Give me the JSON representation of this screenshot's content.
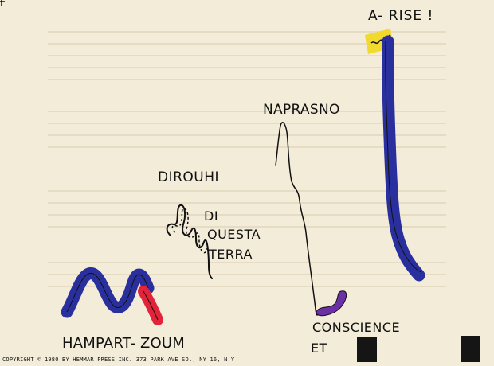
{
  "labels": {
    "hampart_zoum": "HAMPART- ZOUM",
    "dirouhi": "DIROUHI",
    "di_questa_line1": "DI",
    "di_questa_line2": "QUESTA",
    "di_questa_line3": "TERRA",
    "naprasno": "NAPRASNO",
    "conscience": "CONSCIENCE",
    "et": "ET",
    "a_rise": "A- RISE !"
  },
  "copyright": "COPYRIGHT © 1980 BY HEMMAR PRESS INC. 373 PARK AVE SO., NY 16, N.Y",
  "colors": {
    "paper": "#f3ecd9",
    "ink": "#111111",
    "blue": "#2a2f9e",
    "red": "#e2233a",
    "purple": "#6b2fa6",
    "yellow": "#f2d92e"
  }
}
